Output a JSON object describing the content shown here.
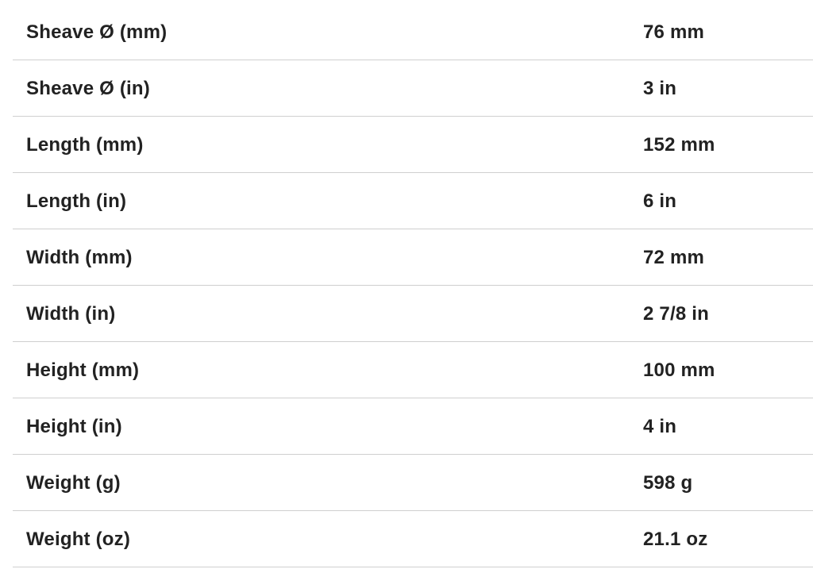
{
  "specs": [
    {
      "label": "Sheave Ø (mm)",
      "value": "76 mm"
    },
    {
      "label": "Sheave Ø (in)",
      "value": "3 in"
    },
    {
      "label": "Length (mm)",
      "value": "152 mm"
    },
    {
      "label": "Length (in)",
      "value": "6 in"
    },
    {
      "label": "Width (mm)",
      "value": "72 mm"
    },
    {
      "label": "Width (in)",
      "value": "2 7/8 in"
    },
    {
      "label": "Height (mm)",
      "value": "100 mm"
    },
    {
      "label": "Height (in)",
      "value": "4 in"
    },
    {
      "label": "Weight (g)",
      "value": "598 g"
    },
    {
      "label": "Weight (oz)",
      "value": "21.1 oz"
    }
  ]
}
